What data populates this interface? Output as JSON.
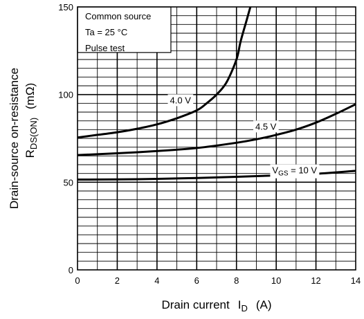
{
  "chart_data": {
    "type": "line",
    "xlabel_main": "Drain current",
    "xlabel_symbol": "I",
    "xlabel_subscript": "D",
    "xlabel_unit": "(A)",
    "ylabel_line1": "Drain-source on-resistance",
    "ylabel_line2_main": "R",
    "ylabel_line2_subscript": "DS(ON)",
    "ylabel_line2_unit": "(mΩ)",
    "xlim": [
      0,
      14
    ],
    "ylim": [
      0,
      150
    ],
    "x_ticks": [
      0,
      2,
      4,
      6,
      8,
      10,
      12,
      14
    ],
    "y_tick_labels": [
      {
        "value": 0,
        "label": "0"
      },
      {
        "value": 50,
        "label": "50"
      },
      {
        "value": 100,
        "label": "100"
      },
      {
        "value": 150,
        "label": "150"
      }
    ],
    "x_minor_step": 1,
    "y_minor_step": 5,
    "grid": true,
    "conditions": [
      "Common source",
      "Ta = 25 °C",
      "Pulse test"
    ],
    "series": [
      {
        "name": "4.0 V",
        "x": [
          0,
          1,
          2,
          3,
          4,
          5,
          6,
          6.5,
          7,
          7.5,
          8,
          8.2,
          8.5,
          8.7
        ],
        "y": [
          75.5,
          77,
          78.5,
          80.5,
          83,
          86.5,
          91,
          95,
          100,
          107,
          120,
          130,
          142,
          150
        ]
      },
      {
        "name": "4.5 V",
        "x": [
          0,
          2,
          4,
          6,
          8,
          9,
          10,
          11,
          12,
          13,
          14
        ],
        "y": [
          65.5,
          66.5,
          67.8,
          69.5,
          72.5,
          74.5,
          77,
          80,
          84,
          89,
          94.5
        ]
      },
      {
        "name_main": "V",
        "name_subscript": "GS",
        "name_suffix": " = 10 V",
        "x": [
          0,
          2,
          4,
          6,
          8,
          10,
          12,
          14
        ],
        "y": [
          51.5,
          51.6,
          51.9,
          52.4,
          53.1,
          53.9,
          54.8,
          56.5
        ]
      }
    ]
  }
}
